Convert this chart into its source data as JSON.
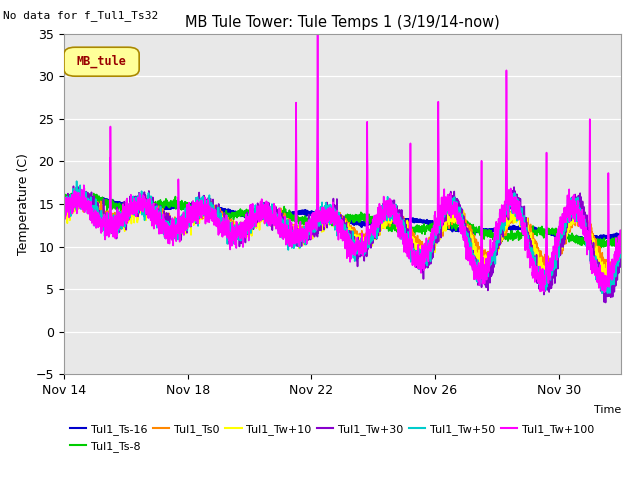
{
  "title": "MB Tule Tower: Tule Temps 1 (3/19/14-now)",
  "no_data_label": "No data for f_Tul1_Ts32",
  "ylabel": "Temperature (C)",
  "xlabel": "Time",
  "ylim": [
    -5,
    35
  ],
  "yticks": [
    -5,
    0,
    5,
    10,
    15,
    20,
    25,
    30,
    35
  ],
  "xtick_labels": [
    "Nov 14",
    "Nov 18",
    "Nov 22",
    "Nov 26",
    "Nov 30"
  ],
  "xtick_positions": [
    0,
    4,
    8,
    12,
    16
  ],
  "plot_bg_color": "#e8e8e8",
  "series": [
    {
      "label": "Tul1_Ts-16",
      "color": "#0000cc",
      "lw": 1.8
    },
    {
      "label": "Tul1_Ts-8",
      "color": "#00cc00",
      "lw": 1.2
    },
    {
      "label": "Tul1_Ts0",
      "color": "#ff8800",
      "lw": 1.2
    },
    {
      "label": "Tul1_Tw+10",
      "color": "#ffff00",
      "lw": 1.2
    },
    {
      "label": "Tul1_Tw+30",
      "color": "#8800cc",
      "lw": 1.2
    },
    {
      "label": "Tul1_Tw+50",
      "color": "#00cccc",
      "lw": 1.2
    },
    {
      "label": "Tul1_Tw+100",
      "color": "#ff00ff",
      "lw": 1.2
    }
  ],
  "legend_box_label": "MB_tule",
  "legend_box_color": "#ffff99",
  "legend_box_border": "#aa8800"
}
